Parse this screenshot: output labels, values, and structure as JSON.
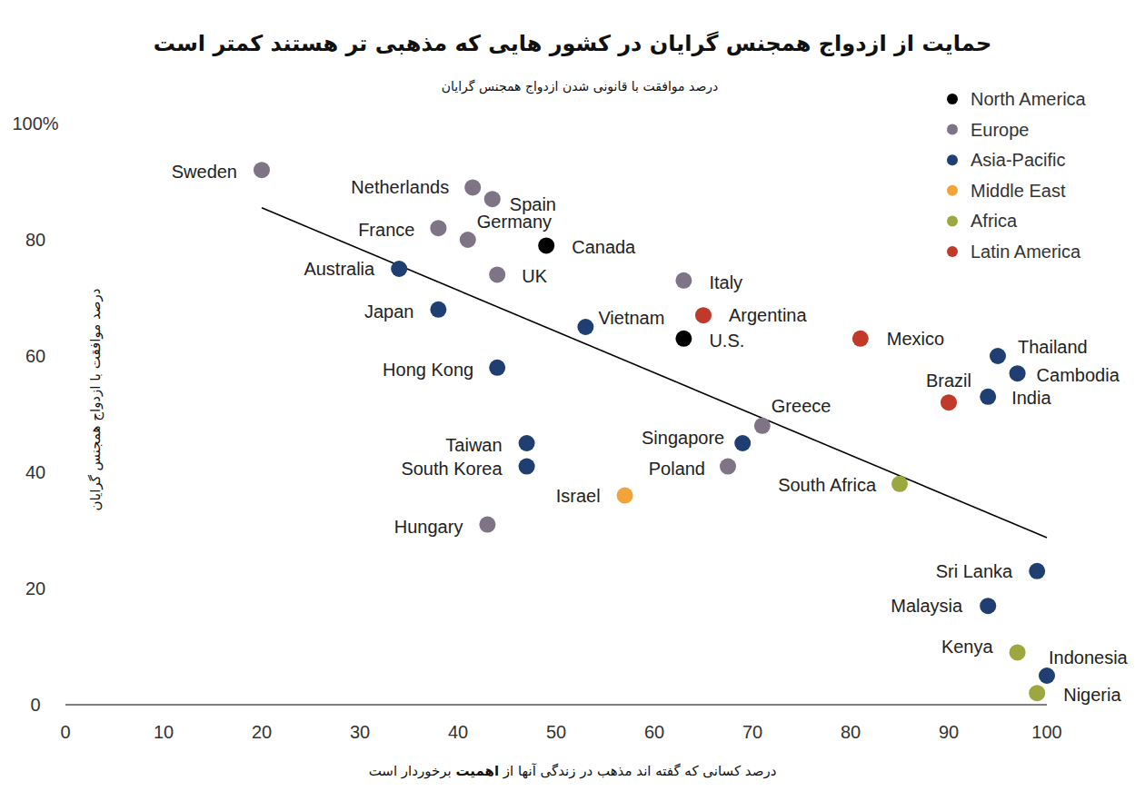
{
  "chart_data": {
    "type": "scatter",
    "title": "حمایت از ازدواج همجنس گرایان در کشور هایی که مذهبی تر هستند کمتر است",
    "subtitle": "درصد موافقت با قانونی شدن ازدواج همجنس گرایان",
    "y_label": "درصد موافقت با ازدواج همجنس گرایان",
    "x_label": "درصد کسانی که گفته اند مذهب در زندگی آنها از اهمیت برخوردار است",
    "x_label_emphasis": "اهمیت",
    "xlim": [
      0,
      100
    ],
    "ylim": [
      0,
      100
    ],
    "xticks": [
      0,
      10,
      20,
      30,
      40,
      50,
      60,
      70,
      80,
      90,
      100
    ],
    "yticks": [
      0,
      20,
      40,
      60,
      80,
      {
        "value": 100,
        "label": "100%"
      }
    ],
    "grid": false,
    "legend": "upper right",
    "series": [
      {
        "name": "North America",
        "color": "#000000",
        "marker": "circle",
        "labels": [
          "Canada",
          "U.S."
        ],
        "x": [
          49,
          63
        ],
        "values": [
          79,
          63
        ]
      },
      {
        "name": "Europe",
        "color": "#7f7486",
        "marker": "circle",
        "labels": [
          "Sweden",
          "Netherlands",
          "Spain",
          "France",
          "Germany",
          "UK",
          "Italy",
          "Greece",
          "Poland",
          "Hungary"
        ],
        "x": [
          20,
          41.5,
          43.5,
          38,
          41,
          44,
          63,
          71,
          67.5,
          43
        ],
        "values": [
          92,
          89,
          87,
          82,
          80,
          74,
          73,
          48,
          41,
          31
        ]
      },
      {
        "name": "Asia-Pacific",
        "color": "#1f3e72",
        "marker": "circle",
        "labels": [
          "Australia",
          "Japan",
          "Vietnam",
          "Hong Kong",
          "Thailand",
          "Cambodia",
          "India",
          "Taiwan",
          "South Korea",
          "Singapore",
          "Sri Lanka",
          "Malaysia",
          "Indonesia"
        ],
        "x": [
          34,
          38,
          53,
          44,
          95,
          97,
          94,
          47,
          47,
          69,
          99,
          94,
          100
        ],
        "values": [
          75,
          68,
          65,
          58,
          60,
          57,
          53,
          45,
          41,
          45,
          23,
          17,
          5
        ]
      },
      {
        "name": "Middle East",
        "color": "#f2a43a",
        "marker": "circle",
        "labels": [
          "Israel"
        ],
        "x": [
          57
        ],
        "values": [
          36
        ]
      },
      {
        "name": "Africa",
        "color": "#9ca83f",
        "marker": "circle",
        "labels": [
          "South Africa",
          "Kenya",
          "Nigeria"
        ],
        "x": [
          85,
          97,
          99
        ],
        "values": [
          38,
          9,
          2
        ]
      },
      {
        "name": "Latin America",
        "color": "#c0392b",
        "marker": "circle",
        "labels": [
          "Argentina",
          "Mexico",
          "Brazil"
        ],
        "x": [
          65,
          81,
          90
        ],
        "values": [
          67,
          63,
          52
        ]
      },
      {
        "type": "line",
        "color": "#000000",
        "line_style": "solid",
        "x": [
          20,
          100
        ],
        "values": [
          85.5,
          28.75
        ]
      }
    ]
  }
}
